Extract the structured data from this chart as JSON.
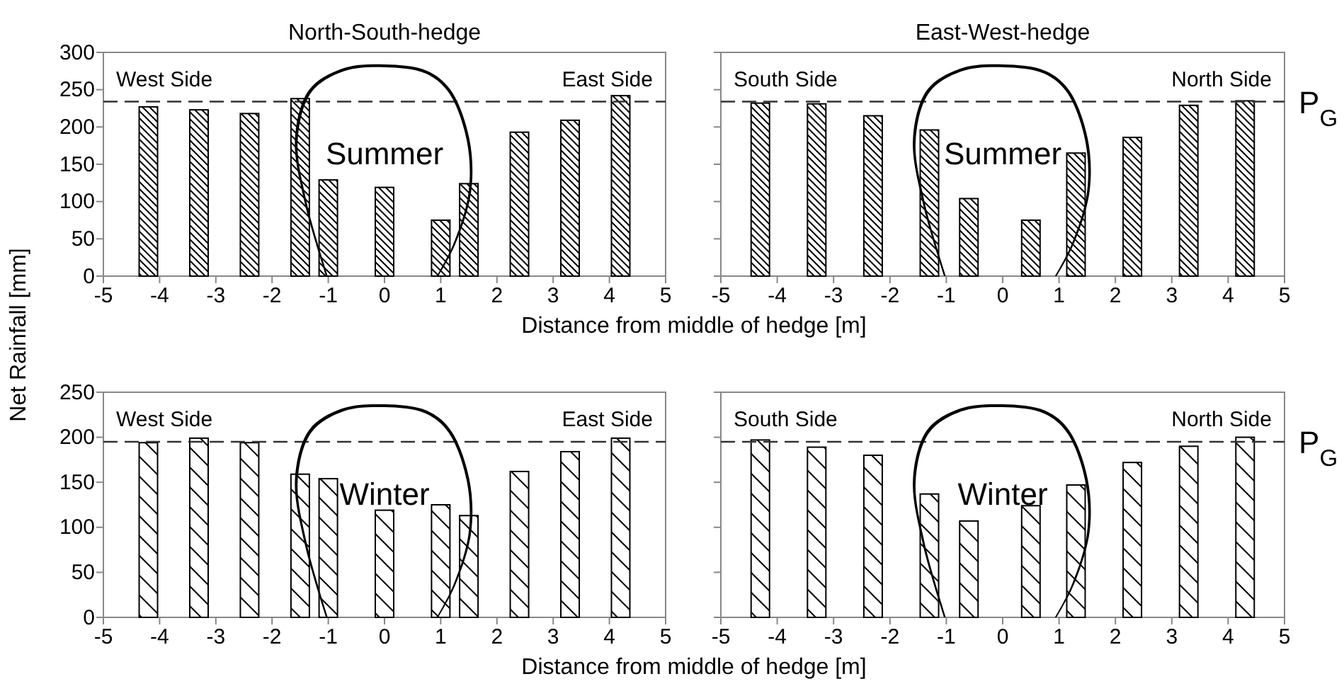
{
  "chart_data": [
    {
      "type": "bar",
      "title": "North-South-hedge",
      "xlabel": "Distance from middle of hedge [m]",
      "ylabel": "Net Rainfall [mm]",
      "x": [
        -4.2,
        -3.3,
        -2.4,
        -1.5,
        -1.0,
        0,
        1.0,
        1.5,
        2.4,
        3.3,
        4.2
      ],
      "values": [
        227,
        223,
        218,
        238,
        129,
        119,
        75,
        124,
        193,
        209,
        242
      ],
      "color": "#000000",
      "xlim": [
        -5,
        5
      ],
      "xticks": [
        -5,
        -4,
        -3,
        -2,
        -1,
        0,
        1,
        2,
        3,
        4,
        5
      ],
      "ylim": [
        0,
        300
      ],
      "yticks": [
        0,
        50,
        100,
        150,
        200,
        250,
        300
      ],
      "annotations": [
        "West Side",
        "East Side",
        "Summer"
      ],
      "ref_lines": [
        {
          "axis": "y",
          "value": 234,
          "line_style": "dashed",
          "color": "#333333"
        }
      ]
    },
    {
      "type": "bar",
      "title": "East-West-hedge",
      "x": [
        -4.3,
        -3.3,
        -2.3,
        -1.3,
        -0.6,
        0.5,
        1.3,
        2.3,
        3.3,
        4.3
      ],
      "values": [
        232,
        231,
        215,
        196,
        104,
        75,
        165,
        186,
        229,
        235
      ],
      "color": "#000000",
      "xlim": [
        -5,
        5
      ],
      "xticks": [
        -5,
        -4,
        -3,
        -2,
        -1,
        0,
        1,
        2,
        3,
        4,
        5
      ],
      "ylim": [
        0,
        300
      ],
      "yticks": [
        0,
        50,
        100,
        150,
        200,
        250,
        300
      ],
      "tick_labels": "x",
      "annotations": [
        "South Side",
        "North Side",
        "Summer"
      ],
      "ref_lines": [
        {
          "axis": "y",
          "value": 234,
          "label": "P$_{G}$",
          "line_style": "dashed",
          "color": "#333333"
        }
      ]
    },
    {
      "type": "bar",
      "xlabel": "Distance from middle of hedge [m]",
      "x": [
        -4.2,
        -3.3,
        -2.4,
        -1.5,
        -1.0,
        0,
        1.0,
        1.5,
        2.4,
        3.3,
        4.2
      ],
      "values": [
        194,
        199,
        194,
        159,
        154,
        119,
        125,
        113,
        162,
        184,
        199
      ],
      "color": "#000000",
      "xlim": [
        -5,
        5
      ],
      "xticks": [
        -5,
        -4,
        -3,
        -2,
        -1,
        0,
        1,
        2,
        3,
        4,
        5
      ],
      "ylim": [
        0,
        250
      ],
      "yticks": [
        0,
        50,
        100,
        150,
        200,
        250
      ],
      "annotations": [
        "West Side",
        "East Side",
        "Winter"
      ],
      "ref_lines": [
        {
          "axis": "y",
          "value": 195,
          "line_style": "dashed",
          "color": "#333333"
        }
      ]
    },
    {
      "type": "bar",
      "x": [
        -4.3,
        -3.3,
        -2.3,
        -1.3,
        -0.6,
        0.5,
        1.3,
        2.3,
        3.3,
        4.3
      ],
      "values": [
        197,
        189,
        180,
        137,
        107,
        124,
        147,
        172,
        190,
        200
      ],
      "color": "#000000",
      "xlim": [
        -5,
        5
      ],
      "xticks": [
        -5,
        -4,
        -3,
        -2,
        -1,
        0,
        1,
        2,
        3,
        4,
        5
      ],
      "ylim": [
        0,
        250
      ],
      "yticks": [
        0,
        50,
        100,
        150,
        200,
        250
      ],
      "tick_labels": "x",
      "annotations": [
        "South Side",
        "North Side",
        "Winter"
      ],
      "ref_lines": [
        {
          "axis": "y",
          "value": 195,
          "label": "P$_{G}$",
          "line_style": "dashed",
          "color": "#333333"
        }
      ]
    }
  ]
}
